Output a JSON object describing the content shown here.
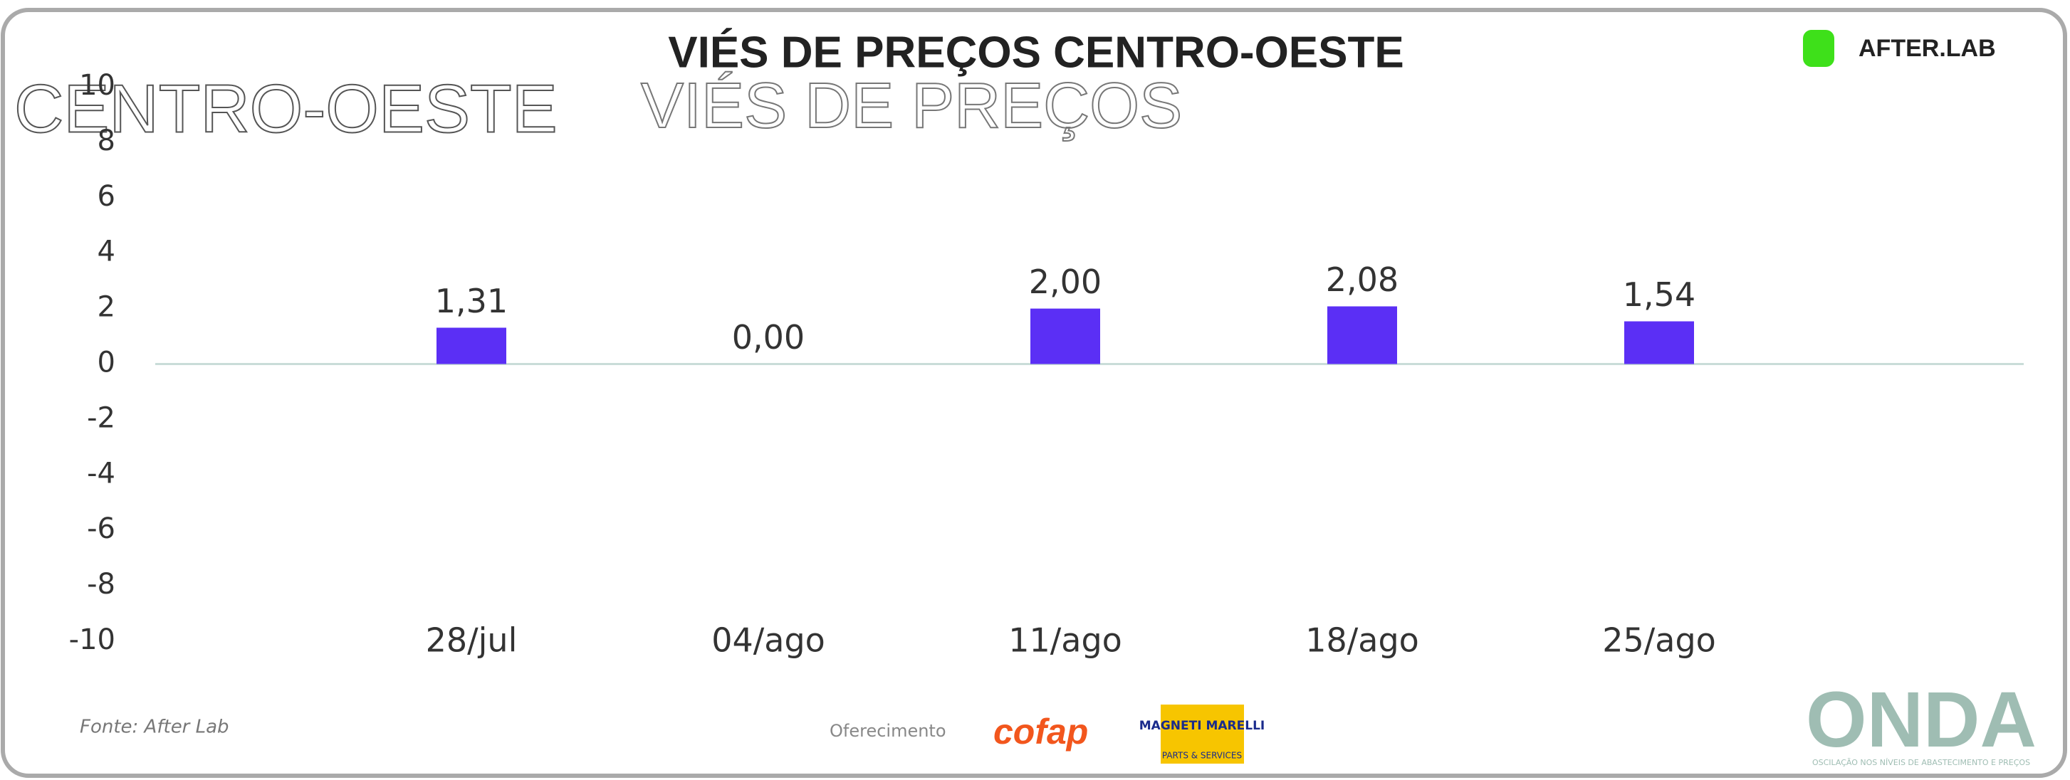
{
  "chart_data": {
    "type": "bar",
    "title": "VIÉS DE PREÇOS CENTRO-OESTE",
    "categories": [
      "28/jul",
      "04/ago",
      "11/ago",
      "18/ago",
      "25/ago"
    ],
    "values": [
      1.31,
      0,
      2.0,
      2.08,
      1.54
    ],
    "value_labels": [
      "1,31",
      "0,00",
      "2,00",
      "2,08",
      "1,54"
    ],
    "color": "#5b2ff5",
    "ylim": [
      -10,
      10
    ],
    "yticks": [
      -10,
      -8,
      -6,
      -4,
      -2,
      0,
      2,
      4,
      6,
      8,
      10
    ],
    "grid": false
  },
  "header": {
    "ghost_region": "CENTRO-OESTE",
    "ghost_title": "VIÉS DE PREÇOS",
    "brand": "AFTER.LAB"
  },
  "footer": {
    "source": "Fonte: After Lab",
    "sponsor_label": "Oferecimento",
    "sponsor_1": "cofap",
    "sponsor_2_top": "MAGNETI MARELLI",
    "sponsor_2_bottom": "PARTS & SERVICES",
    "logo": "ONDA",
    "logo_tagline": "OSCILAÇÃO NOS NÍVEIS DE ABASTECIMENTO E PREÇOS"
  }
}
